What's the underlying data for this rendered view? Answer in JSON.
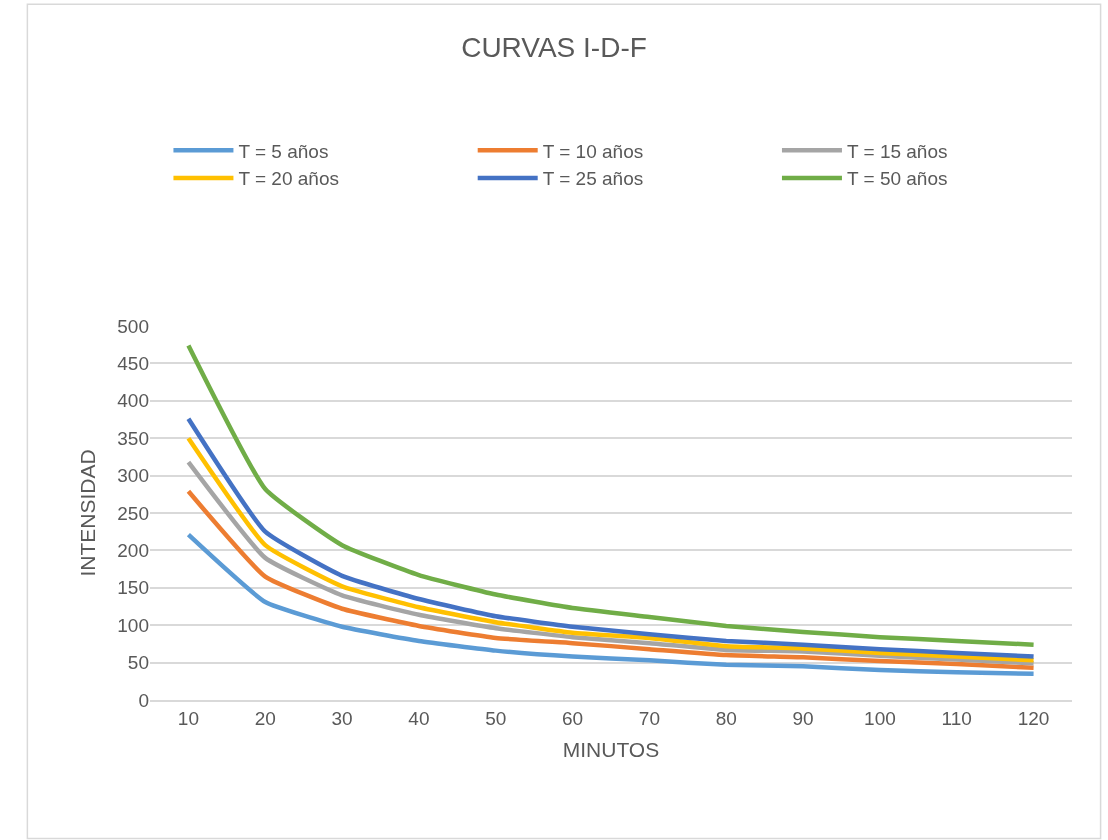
{
  "chart_data": {
    "type": "line",
    "title": "CURVAS I-D-F",
    "xlabel": "MINUTOS",
    "ylabel": "INTENSIDAD",
    "categories": [
      "10",
      "20",
      "30",
      "40",
      "50",
      "60",
      "70",
      "80",
      "90",
      "100",
      "110",
      "120"
    ],
    "series": [
      {
        "name": "T = 5 años",
        "color": "#5b9bd5",
        "values": [
          221,
          131,
          98,
          79,
          66,
          58,
          53,
          47,
          45,
          40,
          37,
          35
        ]
      },
      {
        "name": "T = 10 años",
        "color": "#ed7d31",
        "values": [
          279,
          165,
          122,
          99,
          83,
          76,
          68,
          60,
          57,
          52,
          48,
          43
        ]
      },
      {
        "name": "T = 15 años",
        "color": "#a5a5a5",
        "values": [
          318,
          190,
          140,
          114,
          96,
          84,
          76,
          67,
          65,
          59,
          54,
          49
        ]
      },
      {
        "name": "T = 20 años",
        "color": "#ffc000",
        "values": [
          350,
          207,
          152,
          124,
          104,
          90,
          83,
          72,
          69,
          63,
          58,
          53
        ]
      },
      {
        "name": "T = 25 años",
        "color": "#4472c4",
        "values": [
          376,
          225,
          166,
          135,
          112,
          98,
          88,
          79,
          74,
          68,
          63,
          58
        ]
      },
      {
        "name": "T = 50 años",
        "color": "#70ad47",
        "values": [
          474,
          282,
          207,
          167,
          141,
          123,
          111,
          99,
          91,
          84,
          79,
          74
        ]
      }
    ],
    "ylim": [
      0,
      500
    ],
    "yticks": [
      0,
      50,
      100,
      150,
      200,
      250,
      300,
      350,
      400,
      450,
      500
    ],
    "grid": "y",
    "legend": "top",
    "marker": "none",
    "line_style": "solid"
  }
}
